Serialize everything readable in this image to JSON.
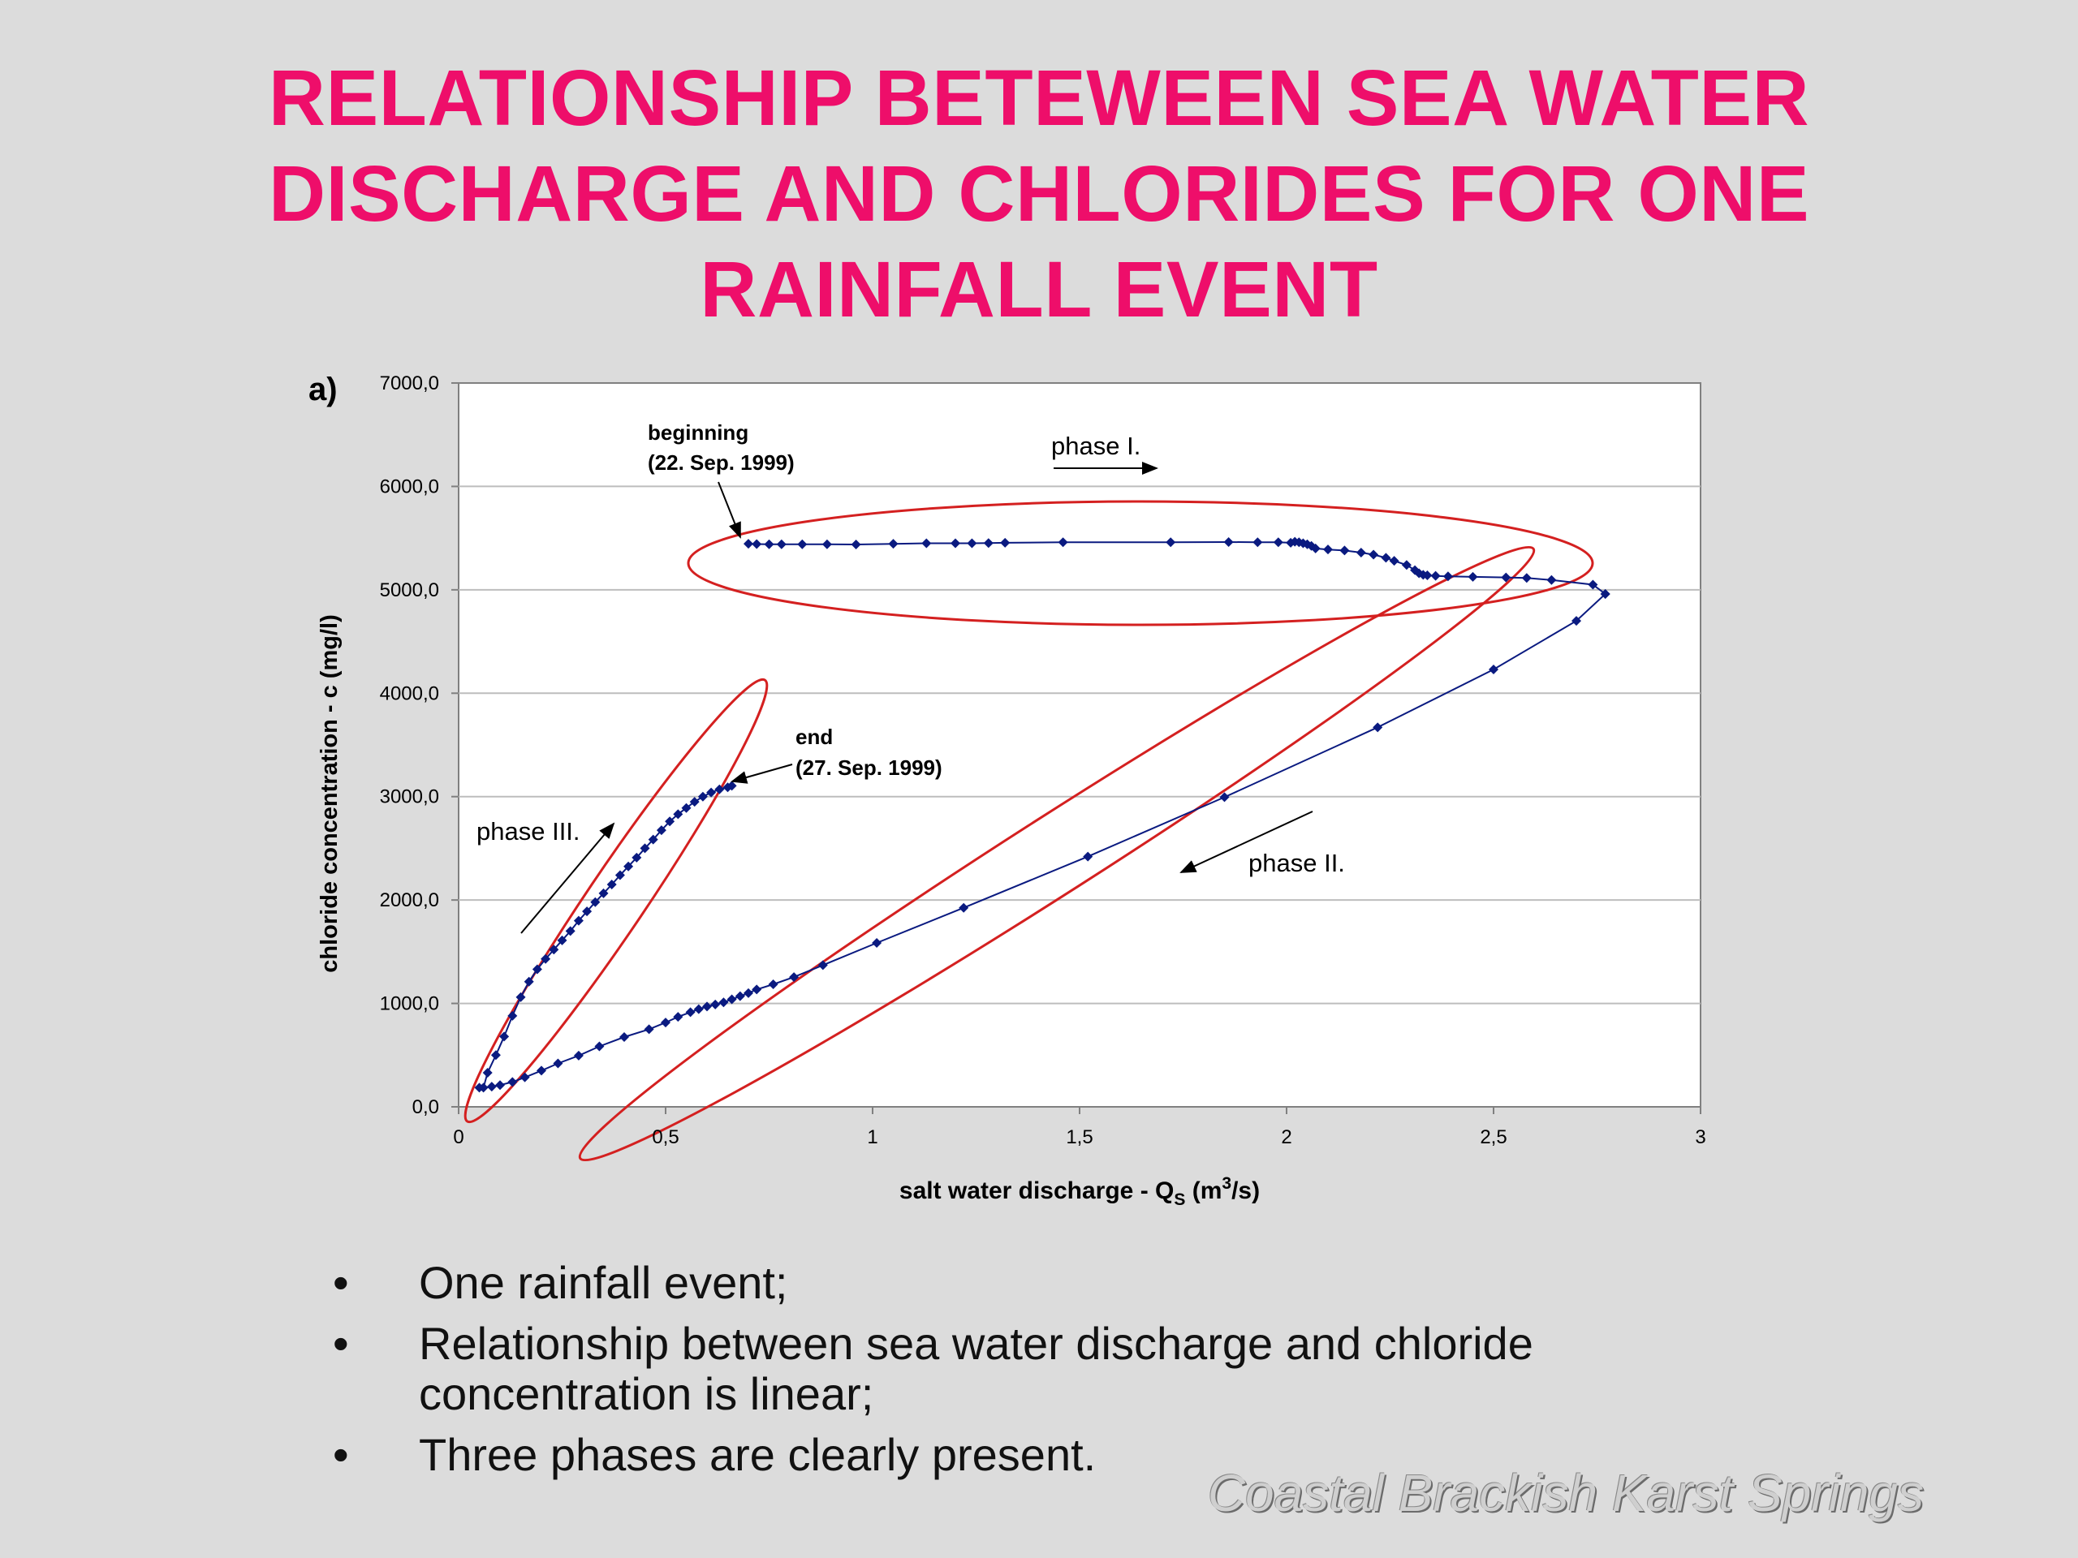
{
  "slide": {
    "title_lines": [
      "RELATIONSHIP BETEWEEN SEA WATER",
      "DISCHARGE AND CHLORIDES FOR ONE",
      "RAINFALL EVENT"
    ],
    "bullets": [
      "One rainfall event;",
      "Relationship between sea water discharge and chloride",
      "concentration is linear;",
      "Three phases are clearly present."
    ],
    "bullet_symbol": "•",
    "footer": "Coastal Brackish Karst Springs",
    "title_color": "#ee0e6a"
  },
  "chart_data": {
    "type": "scatter",
    "panel_label": "a)",
    "xlabel_main": "salt water discharge - Q",
    "xlabel_sub": "S",
    "xlabel_unit_pre": " (m",
    "xlabel_sup": "3",
    "xlabel_unit_post": "/s)",
    "ylabel": "chloride concentration - c (mg/l)",
    "xlim": [
      0,
      3
    ],
    "ylim": [
      0,
      7000
    ],
    "x_ticks": [
      "0",
      "0,5",
      "1",
      "1,5",
      "2",
      "2,5",
      "3"
    ],
    "x_tick_values": [
      0,
      0.5,
      1,
      1.5,
      2,
      2.5,
      3
    ],
    "y_ticks": [
      "0,0",
      "1000,0",
      "2000,0",
      "3000,0",
      "4000,0",
      "5000,0",
      "6000,0",
      "7000,0"
    ],
    "y_tick_values": [
      0,
      1000,
      2000,
      3000,
      4000,
      5000,
      6000,
      7000
    ],
    "grid": "horizontal",
    "series_color": "#0a1a80",
    "ellipse_color": "#d42020",
    "phases": [
      {
        "phase": "phase I.",
        "x": [
          0.7,
          0.72,
          0.75,
          0.78,
          0.83,
          0.89,
          0.96,
          1.05,
          1.13,
          1.2,
          1.24,
          1.28,
          1.32,
          1.46,
          1.72,
          1.86,
          1.93,
          1.98,
          2.01,
          2.02,
          2.03,
          2.04,
          2.05,
          2.06,
          2.07,
          2.1,
          2.14,
          2.18,
          2.21,
          2.24,
          2.26,
          2.29,
          2.31,
          2.32,
          2.33,
          2.34,
          2.36,
          2.39,
          2.45,
          2.53,
          2.58,
          2.64,
          2.74,
          2.77
        ],
        "y": [
          5445,
          5442,
          5440,
          5440,
          5440,
          5440,
          5438,
          5445,
          5450,
          5450,
          5450,
          5452,
          5455,
          5460,
          5460,
          5462,
          5460,
          5460,
          5455,
          5465,
          5460,
          5450,
          5440,
          5425,
          5400,
          5390,
          5380,
          5360,
          5340,
          5310,
          5280,
          5240,
          5190,
          5160,
          5145,
          5140,
          5135,
          5130,
          5125,
          5120,
          5115,
          5095,
          5050,
          4960
        ]
      },
      {
        "phase": "phase II.",
        "x": [
          2.77,
          2.7,
          2.5,
          2.22,
          1.85,
          1.52,
          1.22,
          1.01,
          0.88,
          0.81,
          0.76,
          0.72,
          0.7,
          0.68,
          0.66,
          0.64,
          0.62,
          0.6,
          0.58,
          0.56,
          0.53,
          0.5,
          0.46,
          0.4,
          0.34,
          0.29,
          0.24,
          0.2,
          0.16,
          0.13,
          0.1,
          0.08,
          0.06
        ],
        "y": [
          4960,
          4700,
          4230,
          3670,
          2995,
          2420,
          1925,
          1585,
          1370,
          1255,
          1185,
          1135,
          1100,
          1070,
          1040,
          1010,
          990,
          970,
          945,
          915,
          870,
          815,
          750,
          675,
          585,
          495,
          420,
          350,
          285,
          240,
          210,
          195,
          185
        ]
      },
      {
        "phase": "phase III.",
        "x": [
          0.05,
          0.07,
          0.09,
          0.11,
          0.13,
          0.15,
          0.17,
          0.19,
          0.21,
          0.23,
          0.25,
          0.27,
          0.29,
          0.31,
          0.33,
          0.35,
          0.37,
          0.39,
          0.41,
          0.43,
          0.45,
          0.47,
          0.49,
          0.51,
          0.53,
          0.55,
          0.57,
          0.59,
          0.61,
          0.63,
          0.65,
          0.66
        ],
        "y": [
          185,
          330,
          500,
          680,
          880,
          1060,
          1210,
          1330,
          1430,
          1520,
          1610,
          1700,
          1800,
          1890,
          1980,
          2065,
          2150,
          2240,
          2325,
          2410,
          2500,
          2585,
          2675,
          2760,
          2830,
          2890,
          2950,
          3000,
          3040,
          3070,
          3090,
          3105
        ]
      }
    ],
    "annotations": [
      {
        "name": "beginning-label",
        "lines": [
          "beginning",
          "(22. Sep. 1999)"
        ]
      },
      {
        "name": "end-label",
        "lines": [
          "end",
          "(27. Sep. 1999)"
        ]
      },
      {
        "name": "phase-1-label",
        "text": "phase I."
      },
      {
        "name": "phase-2-label",
        "text": "phase II."
      },
      {
        "name": "phase-3-label",
        "text": "phase III."
      }
    ]
  }
}
